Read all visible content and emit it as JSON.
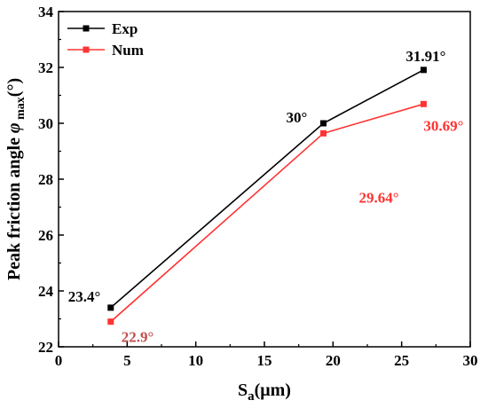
{
  "chart_data": {
    "type": "line",
    "xlabel_main": "S",
    "xlabel_sub": "a",
    "xlabel_unit": "(μm)",
    "ylabel_main": "Peak friction angle ",
    "ylabel_symbol": "φ",
    "ylabel_sub": " max",
    "ylabel_unit": "(°)",
    "xlim": [
      0,
      30
    ],
    "ylim": [
      22,
      34
    ],
    "xticks": [
      "0",
      "5",
      "10",
      "15",
      "20",
      "25",
      "30"
    ],
    "yticks": [
      "22",
      "24",
      "26",
      "28",
      "30",
      "32",
      "34"
    ],
    "legend_position": "top-left",
    "grid": false,
    "series": [
      {
        "name": "Exp",
        "color": "#000000",
        "x": [
          3.8,
          19.3,
          26.6
        ],
        "y": [
          23.4,
          30.0,
          31.91
        ],
        "labels": [
          "23.4°",
          "30°",
          "31.91°"
        ]
      },
      {
        "name": "Num",
        "color": "#ff3333",
        "x": [
          3.8,
          19.3,
          26.6
        ],
        "y": [
          22.9,
          29.64,
          30.69
        ],
        "labels": [
          "22.9°",
          "29.64°",
          "30.69°"
        ]
      }
    ]
  }
}
